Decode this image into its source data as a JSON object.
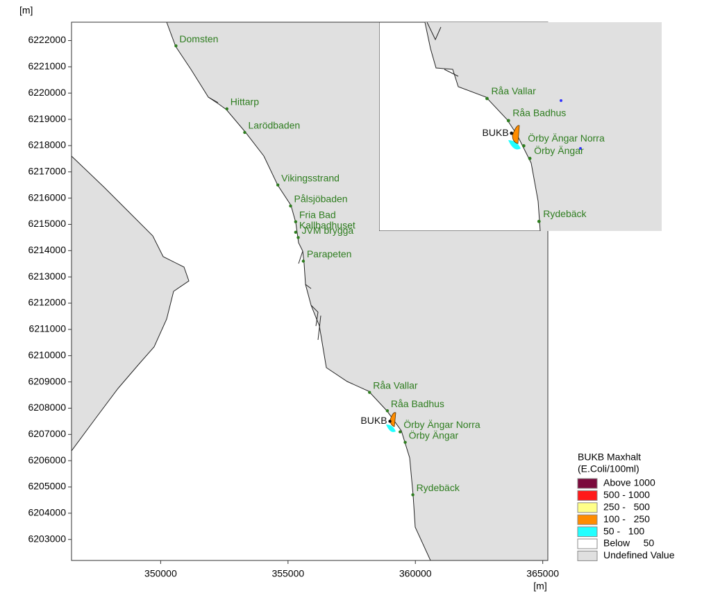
{
  "chart_data": {
    "type": "map",
    "y_label": "[m]",
    "x_label": "[m]",
    "xlim": [
      346500,
      365200
    ],
    "ylim": [
      6202200,
      6222700
    ],
    "xticks": [
      350000,
      355000,
      360000,
      365000
    ],
    "yticks": [
      6203000,
      6204000,
      6205000,
      6206000,
      6207000,
      6208000,
      6209000,
      6210000,
      6211000,
      6212000,
      6213000,
      6214000,
      6215000,
      6216000,
      6217000,
      6218000,
      6219000,
      6220000,
      6221000,
      6222000
    ],
    "stations": {
      "names": [
        "Domsten",
        "Hittarp",
        "Larödbaden",
        "Vikingsstrand",
        "Pålsjöbaden",
        "Fria Bad",
        "Kallbadhuset",
        "JVM brygga",
        "Parapeten",
        "Råa Vallar",
        "Råa Badhus",
        "BUKB",
        "Örby Ängar Norra",
        "Örby Ängar",
        "Rydebäck"
      ],
      "x": [
        350600,
        352600,
        353300,
        354600,
        355100,
        355300,
        355300,
        355400,
        355600,
        358200,
        358900,
        359000,
        359400,
        359600,
        359900
      ],
      "y": [
        6221800,
        6219400,
        6218500,
        6216500,
        6215700,
        6215100,
        6214700,
        6214500,
        6213600,
        6208600,
        6207900,
        6207500,
        6207100,
        6206700,
        6204700
      ],
      "color": "#2e7d1f"
    },
    "legend": {
      "title": "BUKB Maxhalt",
      "subtitle": "(E.Coli/100ml)",
      "items": [
        {
          "label": "Above 1000",
          "color": "#7b0a3c"
        },
        {
          "label": "500 - 1000",
          "color": "#ff1a1a"
        },
        {
          "label": "250 -   500",
          "color": "#ffff88"
        },
        {
          "label": "100 -   250",
          "color": "#ff8c00"
        },
        {
          "label": "50 -   100",
          "color": "#22ffff"
        },
        {
          "label": "Below     50",
          "color": "#ffffff"
        },
        {
          "label": "Undefined Value",
          "color": "#e0e0e0"
        }
      ]
    }
  }
}
